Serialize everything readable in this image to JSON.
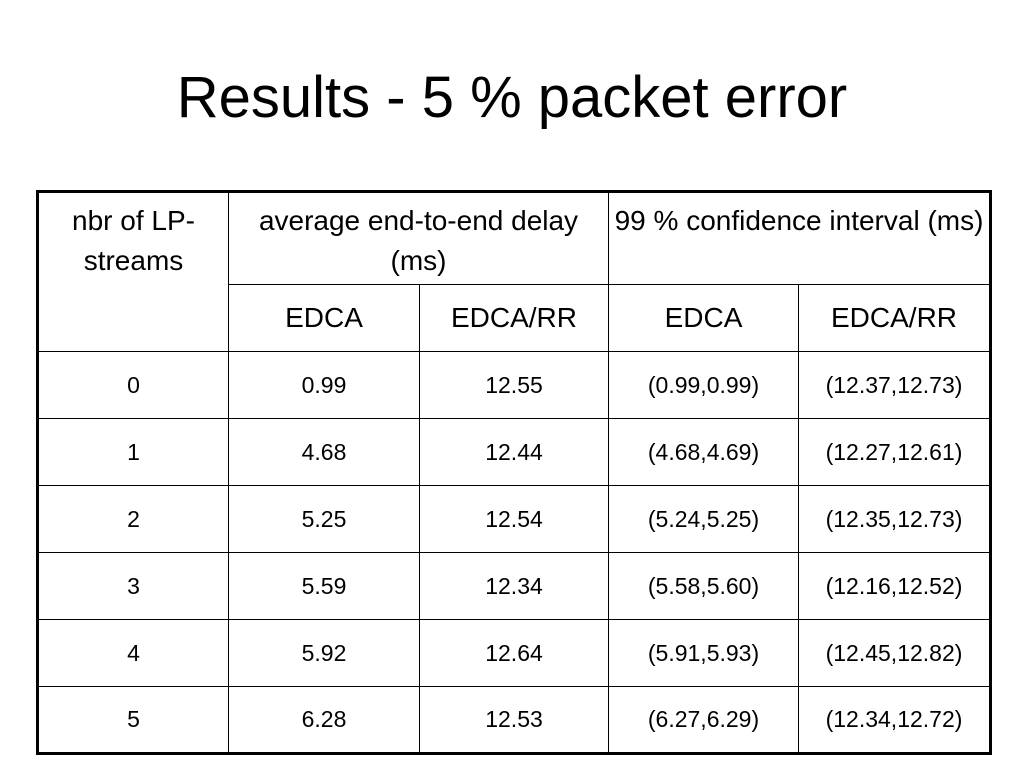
{
  "title": "Results - 5 % packet error",
  "table": {
    "header": [
      "nbr of LP-streams",
      "average end-to-end delay (ms)",
      "99 % confidence interval (ms)"
    ],
    "subheader": [
      "EDCA",
      "EDCA/RR",
      "EDCA",
      "EDCA/RR"
    ],
    "rows": [
      [
        "0",
        "0.99",
        "12.55",
        "(0.99,0.99)",
        "(12.37,12.73)"
      ],
      [
        "1",
        "4.68",
        "12.44",
        "(4.68,4.69)",
        "(12.27,12.61)"
      ],
      [
        "2",
        "5.25",
        "12.54",
        "(5.24,5.25)",
        "(12.35,12.73)"
      ],
      [
        "3",
        "5.59",
        "12.34",
        "(5.58,5.60)",
        "(12.16,12.52)"
      ],
      [
        "4",
        "5.92",
        "12.64",
        "(5.91,5.93)",
        "(12.45,12.82)"
      ],
      [
        "5",
        "6.28",
        "12.53",
        "(6.27,6.29)",
        "(12.34,12.72)"
      ]
    ]
  }
}
